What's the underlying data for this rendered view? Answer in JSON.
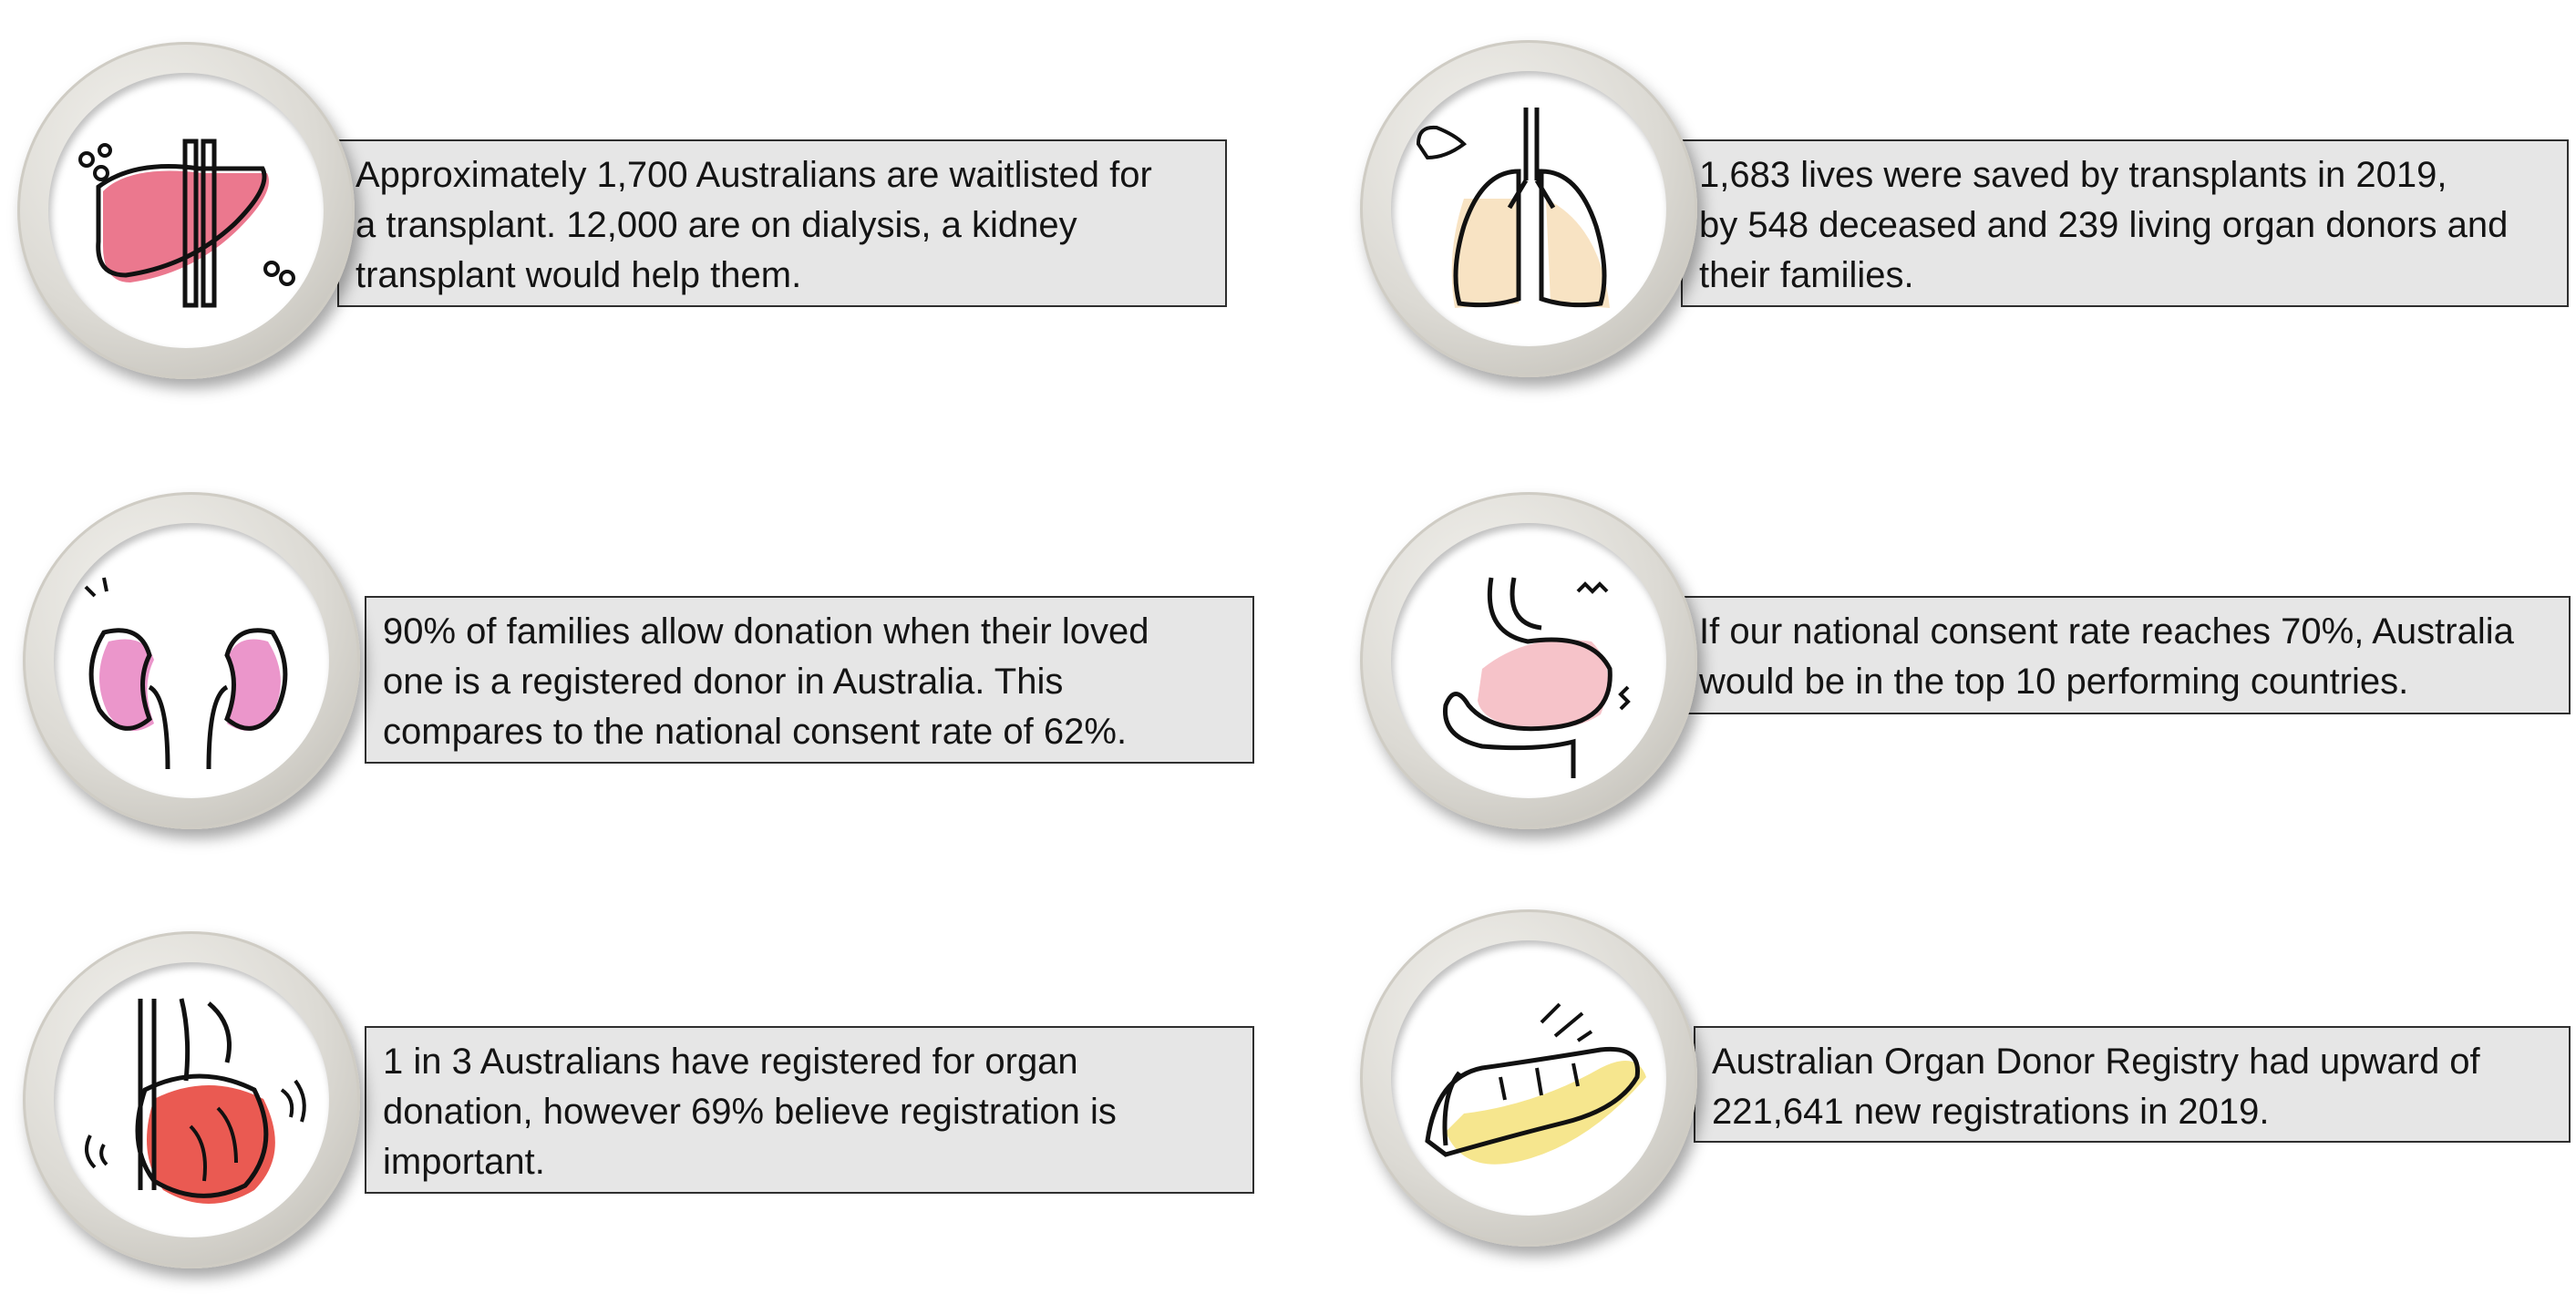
{
  "cards": [
    {
      "icon": "liver-icon",
      "accent": "#e8607a",
      "lines": [
        "Approximately 1,700 Australians are waitlisted for",
        "a transplant. 12,000 are on dialysis, a kidney",
        "transplant would help them."
      ]
    },
    {
      "icon": "lungs-icon",
      "accent": "#f6dcb4",
      "lines": [
        "1,683 lives were saved by transplants in 2019,",
        "by 548 deceased and 239 living organ donors and",
        "their families."
      ]
    },
    {
      "icon": "kidneys-icon",
      "accent": "#e784c2",
      "lines": [
        "90% of families allow donation when their loved",
        "one is a registered donor in Australia. This",
        "compares to the national consent rate of 62%."
      ]
    },
    {
      "icon": "stomach-icon",
      "accent": "#f4b8bf",
      "lines": [
        "If our national consent rate reaches 70%, Australia",
        "would be in the top 10 performing countries."
      ]
    },
    {
      "icon": "heart-icon",
      "accent": "#e8483f",
      "lines": [
        "1 in 3 Australians have registered for organ",
        "donation, however 69% believe registration is",
        "important."
      ]
    },
    {
      "icon": "pancreas-icon",
      "accent": "#f5e27a",
      "lines": [
        "Australian Organ Donor Registry had upward of",
        "221,641 new registrations in 2019."
      ]
    }
  ]
}
